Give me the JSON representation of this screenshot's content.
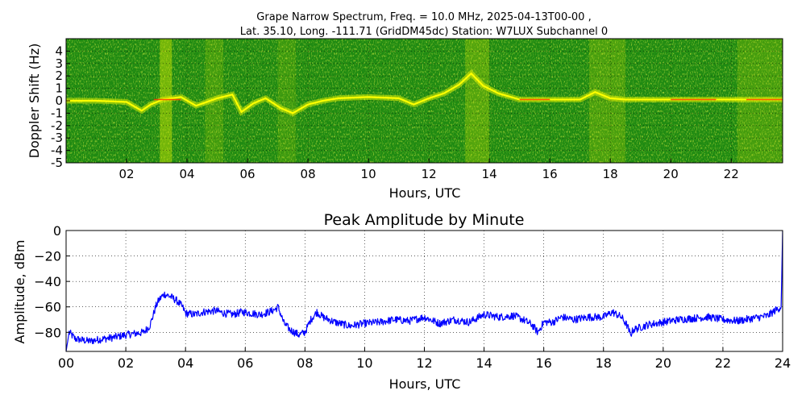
{
  "chart_data": [
    {
      "type": "heatmap",
      "title_line1": "Grape Narrow Spectrum, Freq. = 10.0 MHz, 2025-04-13T00-00 ,",
      "title_line2": "Lat.  35.10, Long. -111.71 (GridDM45dc) Station: W7LUX Subchannel 0",
      "xlabel": "Hours, UTC",
      "ylabel": "Doppler Shift (Hz)",
      "xlim": [
        0,
        23.7
      ],
      "ylim": [
        -5,
        5
      ],
      "xticks": [
        2,
        4,
        6,
        8,
        10,
        12,
        14,
        16,
        18,
        20,
        22
      ],
      "xtick_labels": [
        "02",
        "04",
        "06",
        "08",
        "10",
        "12",
        "14",
        "16",
        "18",
        "20",
        "22"
      ],
      "yticks": [
        4,
        3,
        2,
        1,
        0,
        -1,
        -2,
        -3,
        -4,
        -5
      ],
      "ytick_labels": [
        "4",
        "3",
        "2",
        "1",
        "0",
        "-1",
        "-2",
        "-3",
        "-4",
        "-5"
      ],
      "grid": true,
      "colors": {
        "background": "#1f8a12",
        "signal": "#ffff00",
        "peak": "#ff2a00",
        "noise": "#a8d400"
      },
      "doppler_trace": {
        "hours": [
          0,
          1,
          2,
          2.5,
          2.8,
          3.2,
          3.8,
          4.3,
          5.0,
          5.5,
          5.8,
          6.2,
          6.6,
          7.1,
          7.5,
          8.0,
          8.5,
          9.0,
          10.0,
          11.0,
          11.5,
          12.0,
          12.5,
          13.0,
          13.4,
          13.8,
          14.3,
          15.0,
          16.0,
          17.0,
          17.5,
          18.0,
          18.5,
          19.0,
          20.0,
          21.0,
          22.0,
          23.0,
          23.7
        ],
        "hz": [
          0,
          0,
          -0.1,
          -0.8,
          -0.3,
          0.1,
          0.3,
          -0.4,
          0.2,
          0.5,
          -0.9,
          -0.2,
          0.2,
          -0.6,
          -1.0,
          -0.3,
          0,
          0.2,
          0.3,
          0.2,
          -0.3,
          0.2,
          0.6,
          1.3,
          2.2,
          1.2,
          0.6,
          0.1,
          0.1,
          0.1,
          0.7,
          0.2,
          0.1,
          0.1,
          0.1,
          0.1,
          0.1,
          0.1,
          0.1
        ]
      }
    },
    {
      "type": "line",
      "title": "Peak Amplitude by Minute",
      "xlabel": "Hours, UTC",
      "ylabel": "Amplitude, dBm",
      "xlim": [
        0,
        24
      ],
      "ylim": [
        -95,
        0
      ],
      "xticks": [
        0,
        2,
        4,
        6,
        8,
        10,
        12,
        14,
        16,
        18,
        20,
        22,
        24
      ],
      "xtick_labels": [
        "00",
        "02",
        "04",
        "06",
        "08",
        "10",
        "12",
        "14",
        "16",
        "18",
        "20",
        "22",
        "24"
      ],
      "yticks": [
        0,
        -20,
        -40,
        -60,
        -80
      ],
      "ytick_labels": [
        "0",
        "−20",
        "−40",
        "−60",
        "−80"
      ],
      "grid": true,
      "line_color": "#0000ff",
      "series": [
        {
          "x": [
            0,
            0.1,
            0.3,
            0.5,
            0.8,
            1.0,
            1.3,
            1.6,
            2.0,
            2.3,
            2.6,
            2.8,
            2.9,
            3.0,
            3.1,
            3.2,
            3.3,
            3.5,
            3.7,
            3.9,
            4.0,
            4.3,
            4.6,
            5.0,
            5.3,
            5.6,
            5.9,
            6.2,
            6.5,
            6.8,
            7.0,
            7.1,
            7.3,
            7.5,
            7.8,
            8.0,
            8.2,
            8.4,
            8.6,
            9.0,
            9.5,
            10.0,
            10.5,
            11.0,
            11.5,
            12.0,
            12.5,
            13.0,
            13.5,
            14.0,
            14.5,
            15.0,
            15.3,
            15.6,
            15.8,
            16.0,
            16.3,
            16.6,
            17.0,
            17.5,
            18.0,
            18.3,
            18.6,
            18.8,
            18.9,
            19.0,
            19.5,
            20.0,
            20.5,
            21.0,
            21.5,
            22.0,
            22.5,
            23.0,
            23.5,
            23.8,
            23.95,
            24.0
          ],
          "values": [
            -95,
            -80,
            -85,
            -86,
            -87,
            -86,
            -85,
            -84,
            -82,
            -81,
            -80,
            -75,
            -68,
            -60,
            -55,
            -52,
            -50,
            -52,
            -55,
            -60,
            -65,
            -66,
            -64,
            -63,
            -65,
            -66,
            -64,
            -65,
            -66,
            -64,
            -62,
            -60,
            -73,
            -78,
            -82,
            -80,
            -70,
            -64,
            -68,
            -72,
            -75,
            -73,
            -72,
            -70,
            -71,
            -68,
            -73,
            -70,
            -72,
            -66,
            -68,
            -67,
            -70,
            -74,
            -80,
            -72,
            -72,
            -68,
            -70,
            -68,
            -68,
            -64,
            -68,
            -75,
            -82,
            -78,
            -74,
            -72,
            -70,
            -69,
            -68,
            -70,
            -71,
            -69,
            -67,
            -62,
            -60,
            0
          ]
        }
      ]
    }
  ]
}
